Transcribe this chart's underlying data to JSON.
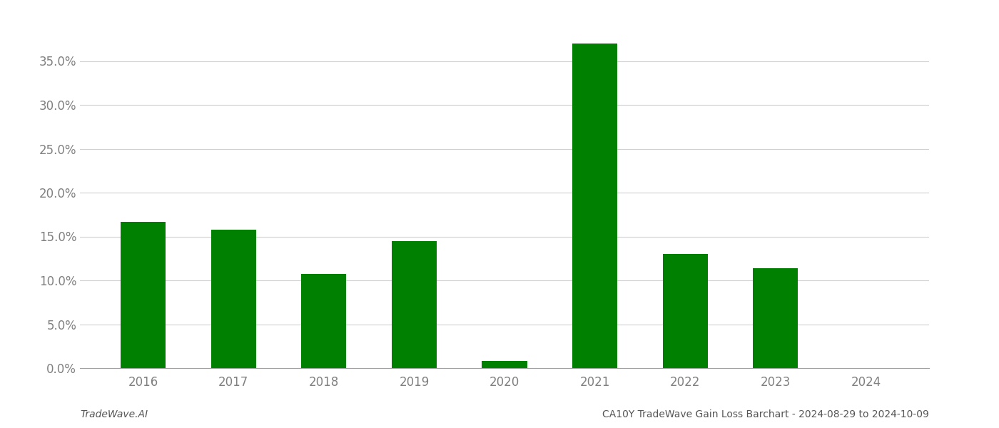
{
  "categories": [
    "2016",
    "2017",
    "2018",
    "2019",
    "2020",
    "2021",
    "2022",
    "2023",
    "2024"
  ],
  "values": [
    0.167,
    0.158,
    0.107,
    0.145,
    0.008,
    0.37,
    0.13,
    0.114,
    0.0
  ],
  "bar_color": "#008000",
  "background_color": "#ffffff",
  "grid_color": "#d0d0d0",
  "ylabel_color": "#808080",
  "xlabel_color": "#808080",
  "footer_left": "TradeWave.AI",
  "footer_right": "CA10Y TradeWave Gain Loss Barchart - 2024-08-29 to 2024-10-09",
  "ylim": [
    0,
    0.4
  ],
  "yticks": [
    0.0,
    0.05,
    0.1,
    0.15,
    0.2,
    0.25,
    0.3,
    0.35
  ],
  "bar_width": 0.5,
  "tick_fontsize": 12,
  "footer_fontsize": 10
}
